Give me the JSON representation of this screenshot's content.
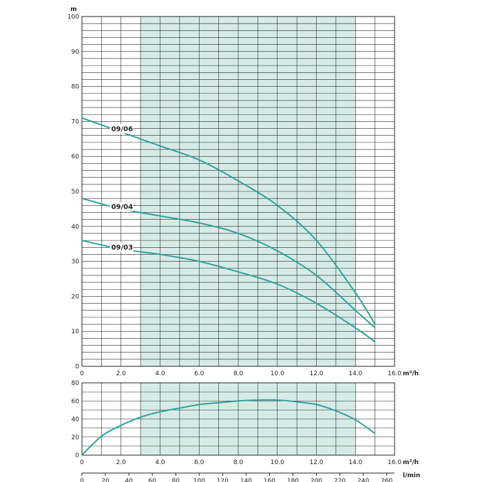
{
  "chart_data": [
    {
      "type": "line",
      "title": "",
      "ylabel": "m",
      "xlabel": "m³/h",
      "xlim": [
        0,
        16
      ],
      "ylim": [
        0,
        100
      ],
      "x_ticks": [
        "0",
        "2.0",
        "4.0",
        "6.0",
        "8.0",
        "10.0",
        "12.0",
        "14.0",
        "16.0"
      ],
      "y_ticks": [
        "0",
        "10",
        "20",
        "30",
        "40",
        "50",
        "60",
        "70",
        "80",
        "90",
        "100"
      ],
      "highlight_band": [
        3,
        14
      ],
      "grid": true,
      "colors": {
        "curve": "#2aa39b",
        "band": "#d7ebe6",
        "grid": "#222222"
      },
      "series": [
        {
          "name": "09/06",
          "x": [
            0,
            2,
            4,
            6,
            8,
            10,
            12,
            14,
            15
          ],
          "y": [
            71,
            67,
            63,
            59,
            53,
            46,
            36,
            21,
            12
          ]
        },
        {
          "name": "09/04",
          "x": [
            0,
            2,
            4,
            6,
            8,
            10,
            12,
            14,
            15
          ],
          "y": [
            48,
            45,
            43,
            41,
            38,
            33,
            26,
            16,
            11
          ]
        },
        {
          "name": "09/03",
          "x": [
            0,
            2,
            4,
            6,
            8,
            10,
            12,
            14,
            15
          ],
          "y": [
            36,
            33.5,
            32,
            30,
            27,
            23.5,
            18,
            11,
            7
          ]
        }
      ]
    },
    {
      "type": "line",
      "title": "",
      "ylabel": "",
      "xlabel": "m³/h",
      "xlabel_secondary": "l/min",
      "xlim": [
        0,
        16
      ],
      "ylim": [
        0,
        80
      ],
      "x_ticks": [
        "0",
        "2.0",
        "4.0",
        "6.0",
        "8.0",
        "10.0",
        "12.0",
        "14.0",
        "16.0"
      ],
      "x_ticks_secondary": [
        "0",
        "20",
        "40",
        "60",
        "80",
        "100",
        "120",
        "140",
        "160",
        "180",
        "200",
        "220",
        "240",
        "260"
      ],
      "y_ticks": [
        "0",
        "20",
        "40",
        "60",
        "80"
      ],
      "highlight_band": [
        3,
        14
      ],
      "grid": true,
      "series": [
        {
          "x": [
            0,
            1,
            2,
            3,
            4,
            5,
            6,
            7,
            8,
            9,
            10,
            11,
            12,
            13,
            14,
            15
          ],
          "y": [
            0,
            21,
            33,
            42,
            48,
            52,
            56,
            58,
            60,
            61,
            61,
            59,
            56,
            49,
            39,
            24
          ]
        }
      ]
    }
  ]
}
